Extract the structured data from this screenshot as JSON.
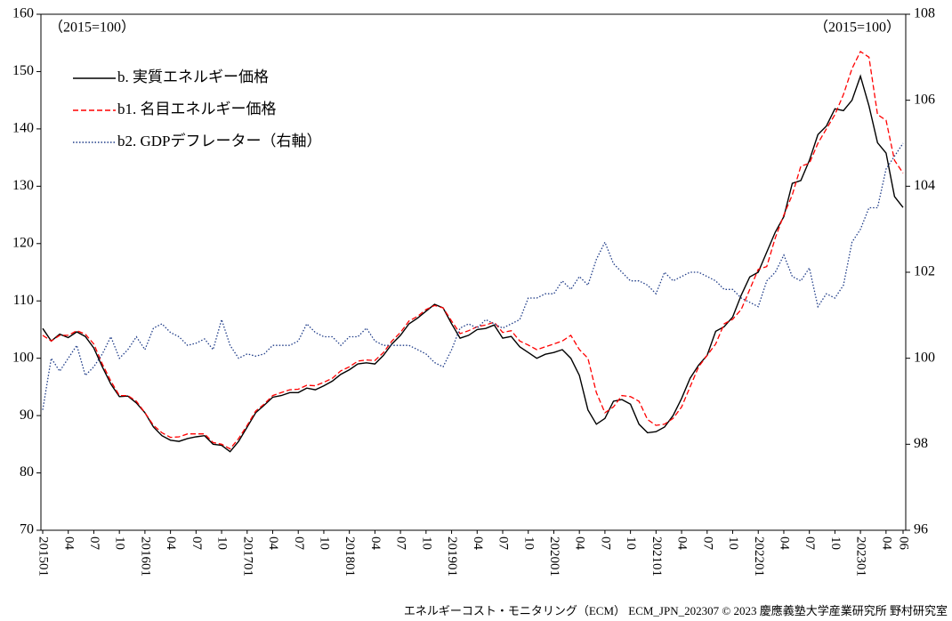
{
  "chart_data": {
    "type": "line",
    "annotations": [
      "（2015=100）",
      "（2015=100）"
    ],
    "footer": "エネルギーコスト・モニタリング（ECM） ECM_JPN_202307 © 2023 慶應義塾大学産業研究所 野村研究室",
    "categories": [
      "201501",
      null,
      null,
      "04",
      null,
      null,
      "07",
      null,
      null,
      "10",
      null,
      null,
      "201601",
      null,
      null,
      "04",
      null,
      null,
      "07",
      null,
      null,
      "10",
      null,
      null,
      "201701",
      null,
      null,
      "04",
      null,
      null,
      "07",
      null,
      null,
      "10",
      null,
      null,
      "201801",
      null,
      null,
      "04",
      null,
      null,
      "07",
      null,
      null,
      "10",
      null,
      null,
      "201901",
      null,
      null,
      "04",
      null,
      null,
      "07",
      null,
      null,
      "10",
      null,
      null,
      "202001",
      null,
      null,
      "04",
      null,
      null,
      "07",
      null,
      null,
      "10",
      null,
      null,
      "202101",
      null,
      null,
      "04",
      null,
      null,
      "07",
      null,
      null,
      "10",
      null,
      null,
      "202201",
      null,
      null,
      "04",
      null,
      null,
      "07",
      null,
      null,
      "10",
      null,
      null,
      "202301",
      null,
      null,
      "04",
      null,
      "06"
    ],
    "ylim": [
      70,
      160
    ],
    "yticks": [
      70,
      80,
      90,
      100,
      110,
      120,
      130,
      140,
      150,
      160
    ],
    "y2lim": [
      96,
      108
    ],
    "y2ticks": [
      96,
      98,
      100,
      102,
      104,
      106,
      108
    ],
    "legend": "upper left",
    "series": [
      {
        "name": "b. 実質エネルギー価格",
        "color": "#000000",
        "style": "solid",
        "values": [
          105.2,
          103,
          104.2,
          103.6,
          104.6,
          103.8,
          101.8,
          98.5,
          95.5,
          93.3,
          93.4,
          92.2,
          90.5,
          88,
          86.5,
          85.7,
          85.5,
          86,
          86.3,
          86.5,
          85,
          84.8,
          83.7,
          85.5,
          88,
          90.5,
          91.8,
          93.2,
          93.5,
          94,
          94,
          94.8,
          94.5,
          95.2,
          96,
          97.2,
          98,
          99,
          99.2,
          99,
          100.5,
          102.5,
          104,
          106,
          107,
          108.2,
          109.4,
          108.8,
          106,
          103.5,
          104,
          105,
          105.2,
          105.8,
          103.5,
          103.8,
          102,
          101,
          100,
          100.7,
          101,
          101.5,
          100,
          97,
          91,
          88.5,
          89.5,
          92.5,
          92.8,
          92,
          88.5,
          87,
          87.2,
          88,
          90,
          93,
          96.5,
          98.8,
          100.5,
          104.7,
          105.5,
          107.2,
          111,
          114.2,
          115,
          118.5,
          122,
          124.7,
          130.5,
          131,
          134.5,
          139,
          140.5,
          143.5,
          143.2,
          145,
          149.2,
          144,
          137.6,
          135.8,
          128.2,
          126.3
        ]
      },
      {
        "name": "b1. 名目エネルギー価格",
        "color": "#ff0000",
        "style": "dashed",
        "values": [
          104,
          103,
          104,
          104,
          104.8,
          104.2,
          102.5,
          99,
          96,
          93.5,
          93.5,
          92.5,
          90.5,
          88.3,
          87,
          86.2,
          86.3,
          86.8,
          86.8,
          86.8,
          85.3,
          85,
          84.2,
          86,
          88.3,
          90.8,
          92,
          93.5,
          94,
          94.5,
          94.6,
          95.3,
          95.2,
          95.8,
          96.5,
          97.8,
          98.5,
          99.5,
          99.7,
          99.6,
          101,
          103,
          104.5,
          106.5,
          107.3,
          108.5,
          109.2,
          108.8,
          106.5,
          104.3,
          104.8,
          105.5,
          105.8,
          106.3,
          104.5,
          104.8,
          103,
          102.3,
          101.5,
          102,
          102.5,
          103,
          104,
          101.5,
          100,
          94,
          90.5,
          91.5,
          93.5,
          93.3,
          92.5,
          89.3,
          88.3,
          88.5,
          89.5,
          91.5,
          95,
          98.5,
          100.5,
          102.5,
          106,
          106.8,
          108.5,
          112,
          115.5,
          116,
          121,
          125,
          128.5,
          133.5,
          134,
          137.5,
          140,
          142.5,
          146,
          150.5,
          153.5,
          152.5,
          142.5,
          141.5,
          134.5,
          132.3
        ]
      },
      {
        "name": "b2. GDPデフレーター（右軸）",
        "color": "#1f3c88",
        "style": "dotted",
        "axis": "y2",
        "values": [
          98.8,
          100,
          99.7,
          100,
          100.3,
          99.6,
          99.8,
          100.1,
          100.5,
          100,
          100.2,
          100.5,
          100.2,
          100.7,
          100.8,
          100.6,
          100.5,
          100.3,
          100.35,
          100.45,
          100.2,
          100.9,
          100.3,
          100,
          100.1,
          100.05,
          100.1,
          100.3,
          100.3,
          100.3,
          100.4,
          100.8,
          100.6,
          100.5,
          100.5,
          100.3,
          100.5,
          100.5,
          100.7,
          100.4,
          100.3,
          100.3,
          100.3,
          100.3,
          100.2,
          100.1,
          99.9,
          99.8,
          100.2,
          100.7,
          100.8,
          100.7,
          100.9,
          100.8,
          100.7,
          100.8,
          100.9,
          101.4,
          101.4,
          101.5,
          101.5,
          101.8,
          101.6,
          101.9,
          101.7,
          102.3,
          102.7,
          102.2,
          102,
          101.8,
          101.8,
          101.7,
          101.5,
          102,
          101.8,
          101.9,
          102,
          102,
          101.9,
          101.8,
          101.6,
          101.6,
          101.4,
          101.3,
          101.2,
          101.8,
          102,
          102.4,
          101.9,
          101.8,
          102.1,
          101.2,
          101.5,
          101.4,
          101.7,
          102.7,
          103,
          103.5,
          103.5,
          104.4,
          104.7,
          105
        ]
      }
    ]
  }
}
